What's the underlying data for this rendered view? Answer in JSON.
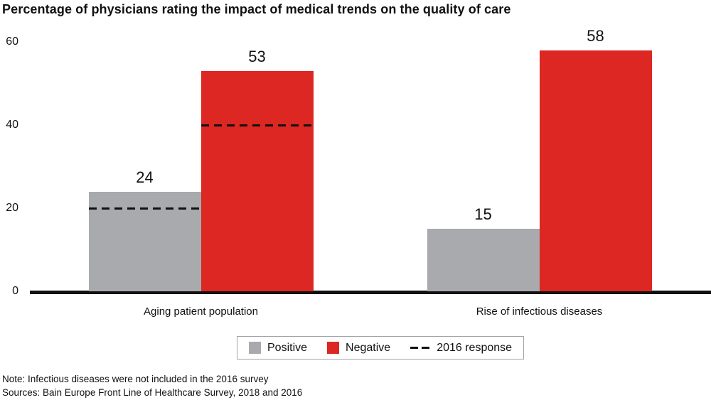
{
  "title": "Percentage of physicians rating the impact of medical trends on the quality of care",
  "notes": {
    "note": "Note: Infectious diseases were not included in the 2016 survey",
    "sources": "Sources: Bain Europe Front Line of Healthcare Survey, 2018 and 2016"
  },
  "legend": {
    "items": [
      {
        "label": "Positive",
        "swatch": "positive-square",
        "color": "#a9aaad"
      },
      {
        "label": "Negative",
        "swatch": "negative-square",
        "color": "#dc2723"
      },
      {
        "label": "2016 response",
        "swatch": "dashed-line",
        "color": "#111111"
      }
    ]
  },
  "chart_data": {
    "type": "bar",
    "title": "Percentage of physicians rating the impact of medical trends on the quality of care",
    "categories": [
      "Aging patient population",
      "Rise of infectious diseases"
    ],
    "series": [
      {
        "name": "Positive",
        "color": "#a9aaad",
        "values": [
          24,
          15
        ]
      },
      {
        "name": "Negative",
        "color": "#dc2723",
        "values": [
          53,
          58
        ]
      }
    ],
    "response_2016": [
      {
        "Positive": 20,
        "Negative": 40
      },
      null
    ],
    "bar_labels": [
      [
        "24",
        "15"
      ],
      [
        "53",
        "58"
      ]
    ],
    "xlabel": "",
    "ylabel": "",
    "yticks": [
      0,
      20,
      40,
      60
    ],
    "ylim": [
      0,
      62
    ],
    "grid": false,
    "legend_position": "bottom"
  }
}
